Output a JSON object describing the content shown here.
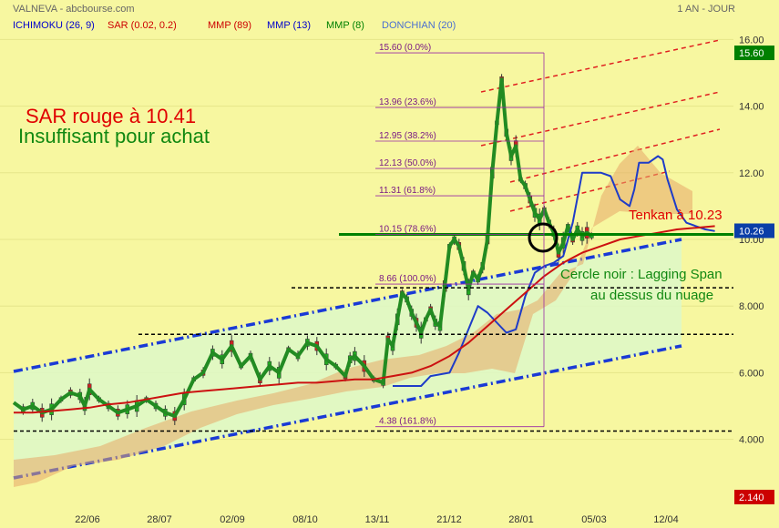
{
  "header": {
    "left": "VALNEVA - abcbourse.com",
    "right": "1 AN - JOUR"
  },
  "indicators": [
    {
      "label": "ICHIMOKU (26, 9)",
      "color": "#0000cc"
    },
    {
      "label": "SAR (0.02, 0.2)",
      "color": "#cc0000"
    },
    {
      "label": "MMP (89)",
      "color": "#cc0000"
    },
    {
      "label": "MMP (13)",
      "color": "#0000cc"
    },
    {
      "label": "MMP (8)",
      "color": "#008000"
    },
    {
      "label": "DONCHIAN (20)",
      "color": "#4a6fd0"
    }
  ],
  "annotations": {
    "sar": "SAR rouge à 10.41",
    "insuffisant": "Insuffisant pour achat",
    "tenkan": "Tenkan à 10.23",
    "cercle_1": "Cercle noir : Lagging Span",
    "cercle_2": "au dessus du nuage"
  },
  "chart_data": {
    "type": "line",
    "x_tick_labels": [
      "22/06",
      "28/07",
      "02/09",
      "08/10",
      "13/11",
      "21/12",
      "28/01",
      "05/03",
      "12/04"
    ],
    "ylim": [
      2.14,
      16.6
    ],
    "y_ticks": [
      4.0,
      6.0,
      8.0,
      10.0,
      12.0,
      14.0,
      16.0
    ],
    "y_tick_labels": [
      "4.000",
      "6.000",
      "8.000",
      "10.00",
      "12.00",
      "14.00",
      "16.00"
    ],
    "price_badges": [
      {
        "label": "15.60",
        "value": 15.6,
        "color": "#008000"
      },
      {
        "label": "10.26",
        "value": 10.26,
        "color": "#0a3ea8"
      },
      {
        "label": "2.140",
        "value": 2.14,
        "color": "#cc0000"
      }
    ],
    "fibonacci": [
      {
        "label": "15.60  (0.0%)",
        "value": 15.6
      },
      {
        "label": "13.96  (23.6%)",
        "value": 13.96
      },
      {
        "label": "12.95  (38.2%)",
        "value": 12.95
      },
      {
        "label": "12.13  (50.0%)",
        "value": 12.13
      },
      {
        "label": "11.31  (61.8%)",
        "value": 11.31
      },
      {
        "label": "10.15  (78.6%)",
        "value": 10.15
      },
      {
        "label": "8.66  (100.0%)",
        "value": 8.66
      },
      {
        "label": "4.38  (161.8%)",
        "value": 4.38
      }
    ],
    "horizontal_levels": [
      {
        "value": 10.15,
        "style": "solid",
        "color": "#008000"
      },
      {
        "value": 8.55,
        "style": "dashed",
        "color": "#000000"
      },
      {
        "value": 7.15,
        "style": "dashed",
        "color": "#000000"
      },
      {
        "value": 4.25,
        "style": "dashed",
        "color": "#000000"
      }
    ],
    "series": [
      {
        "name": "MMP (8)",
        "color": "#228b22",
        "values": [
          [
            0,
            5.1
          ],
          [
            10,
            4.9
          ],
          [
            20,
            5.0
          ],
          [
            30,
            4.8
          ],
          [
            40,
            4.9
          ],
          [
            50,
            5.2
          ],
          [
            60,
            5.4
          ],
          [
            70,
            5.3
          ],
          [
            75,
            5.0
          ],
          [
            80,
            5.5
          ],
          [
            90,
            5.2
          ],
          [
            100,
            5.0
          ],
          [
            110,
            4.8
          ],
          [
            120,
            4.9
          ],
          [
            130,
            5.0
          ],
          [
            140,
            5.2
          ],
          [
            150,
            5.0
          ],
          [
            160,
            4.8
          ],
          [
            170,
            4.7
          ],
          [
            180,
            5.2
          ],
          [
            190,
            5.8
          ],
          [
            200,
            6.0
          ],
          [
            210,
            6.6
          ],
          [
            220,
            6.4
          ],
          [
            230,
            6.8
          ],
          [
            240,
            6.2
          ],
          [
            250,
            6.5
          ],
          [
            260,
            5.8
          ],
          [
            270,
            6.2
          ],
          [
            280,
            6.0
          ],
          [
            290,
            6.7
          ],
          [
            300,
            6.5
          ],
          [
            310,
            6.9
          ],
          [
            320,
            6.8
          ],
          [
            330,
            6.4
          ],
          [
            340,
            6.2
          ],
          [
            350,
            5.9
          ],
          [
            355,
            6.4
          ],
          [
            360,
            6.5
          ],
          [
            370,
            6.2
          ],
          [
            380,
            5.8
          ],
          [
            390,
            5.7
          ],
          [
            395,
            7.0
          ],
          [
            400,
            6.8
          ],
          [
            405,
            7.6
          ],
          [
            410,
            8.4
          ],
          [
            415,
            8.2
          ],
          [
            420,
            7.8
          ],
          [
            425,
            7.5
          ],
          [
            430,
            7.2
          ],
          [
            435,
            7.6
          ],
          [
            440,
            7.9
          ],
          [
            445,
            7.5
          ],
          [
            450,
            7.4
          ],
          [
            455,
            8.6
          ],
          [
            460,
            9.8
          ],
          [
            465,
            10.0
          ],
          [
            470,
            9.8
          ],
          [
            475,
            9.2
          ],
          [
            480,
            8.5
          ],
          [
            485,
            9.0
          ],
          [
            490,
            8.8
          ],
          [
            495,
            9.2
          ],
          [
            500,
            10.0
          ],
          [
            505,
            12.0
          ],
          [
            510,
            13.5
          ],
          [
            515,
            14.8
          ],
          [
            520,
            13.2
          ],
          [
            525,
            12.5
          ],
          [
            530,
            12.8
          ],
          [
            535,
            11.8
          ],
          [
            540,
            11.6
          ],
          [
            545,
            11.2
          ],
          [
            550,
            10.8
          ],
          [
            555,
            10.6
          ],
          [
            560,
            10.9
          ],
          [
            565,
            10.5
          ],
          [
            570,
            10.2
          ],
          [
            575,
            9.6
          ],
          [
            580,
            9.9
          ],
          [
            585,
            10.4
          ],
          [
            590,
            10.0
          ],
          [
            595,
            10.3
          ],
          [
            600,
            10.1
          ],
          [
            605,
            10.2
          ],
          [
            610,
            10.1
          ]
        ]
      },
      {
        "name": "MMP (13)",
        "color": "#1e3cc8",
        "values": [
          [
            400,
            5.6
          ],
          [
            420,
            5.6
          ],
          [
            430,
            5.6
          ],
          [
            440,
            5.9
          ],
          [
            460,
            6.0
          ],
          [
            470,
            6.6
          ],
          [
            480,
            7.3
          ],
          [
            490,
            8.0
          ],
          [
            500,
            7.8
          ],
          [
            510,
            7.5
          ],
          [
            520,
            7.2
          ],
          [
            530,
            7.3
          ],
          [
            540,
            8.3
          ],
          [
            550,
            9.0
          ],
          [
            560,
            9.2
          ],
          [
            570,
            9.3
          ],
          [
            580,
            9.5
          ],
          [
            590,
            10.5
          ],
          [
            600,
            12.0
          ],
          [
            610,
            12.0
          ],
          [
            620,
            12.0
          ],
          [
            630,
            11.9
          ],
          [
            640,
            11.2
          ],
          [
            650,
            11.0
          ],
          [
            655,
            11.5
          ],
          [
            660,
            12.3
          ],
          [
            670,
            12.3
          ],
          [
            680,
            12.5
          ],
          [
            685,
            12.4
          ],
          [
            690,
            11.8
          ],
          [
            700,
            10.9
          ],
          [
            710,
            10.5
          ],
          [
            720,
            10.4
          ],
          [
            730,
            10.3
          ],
          [
            740,
            10.25
          ]
        ]
      },
      {
        "name": "MMP (89)",
        "color": "#cc1111",
        "values": [
          [
            0,
            4.8
          ],
          [
            20,
            4.8
          ],
          [
            40,
            4.85
          ],
          [
            60,
            4.9
          ],
          [
            80,
            4.95
          ],
          [
            100,
            5.05
          ],
          [
            120,
            5.1
          ],
          [
            140,
            5.2
          ],
          [
            160,
            5.3
          ],
          [
            180,
            5.4
          ],
          [
            200,
            5.45
          ],
          [
            220,
            5.5
          ],
          [
            240,
            5.55
          ],
          [
            260,
            5.6
          ],
          [
            280,
            5.65
          ],
          [
            300,
            5.7
          ],
          [
            320,
            5.7
          ],
          [
            340,
            5.75
          ],
          [
            360,
            5.8
          ],
          [
            380,
            5.8
          ],
          [
            400,
            5.9
          ],
          [
            420,
            6.0
          ],
          [
            440,
            6.2
          ],
          [
            460,
            6.5
          ],
          [
            480,
            6.9
          ],
          [
            500,
            7.4
          ],
          [
            520,
            7.9
          ],
          [
            540,
            8.4
          ],
          [
            560,
            8.9
          ],
          [
            580,
            9.3
          ],
          [
            600,
            9.6
          ],
          [
            620,
            9.8
          ],
          [
            640,
            10.0
          ],
          [
            660,
            10.1
          ],
          [
            680,
            10.2
          ],
          [
            700,
            10.3
          ],
          [
            720,
            10.35
          ],
          [
            740,
            10.4
          ]
        ]
      }
    ]
  }
}
